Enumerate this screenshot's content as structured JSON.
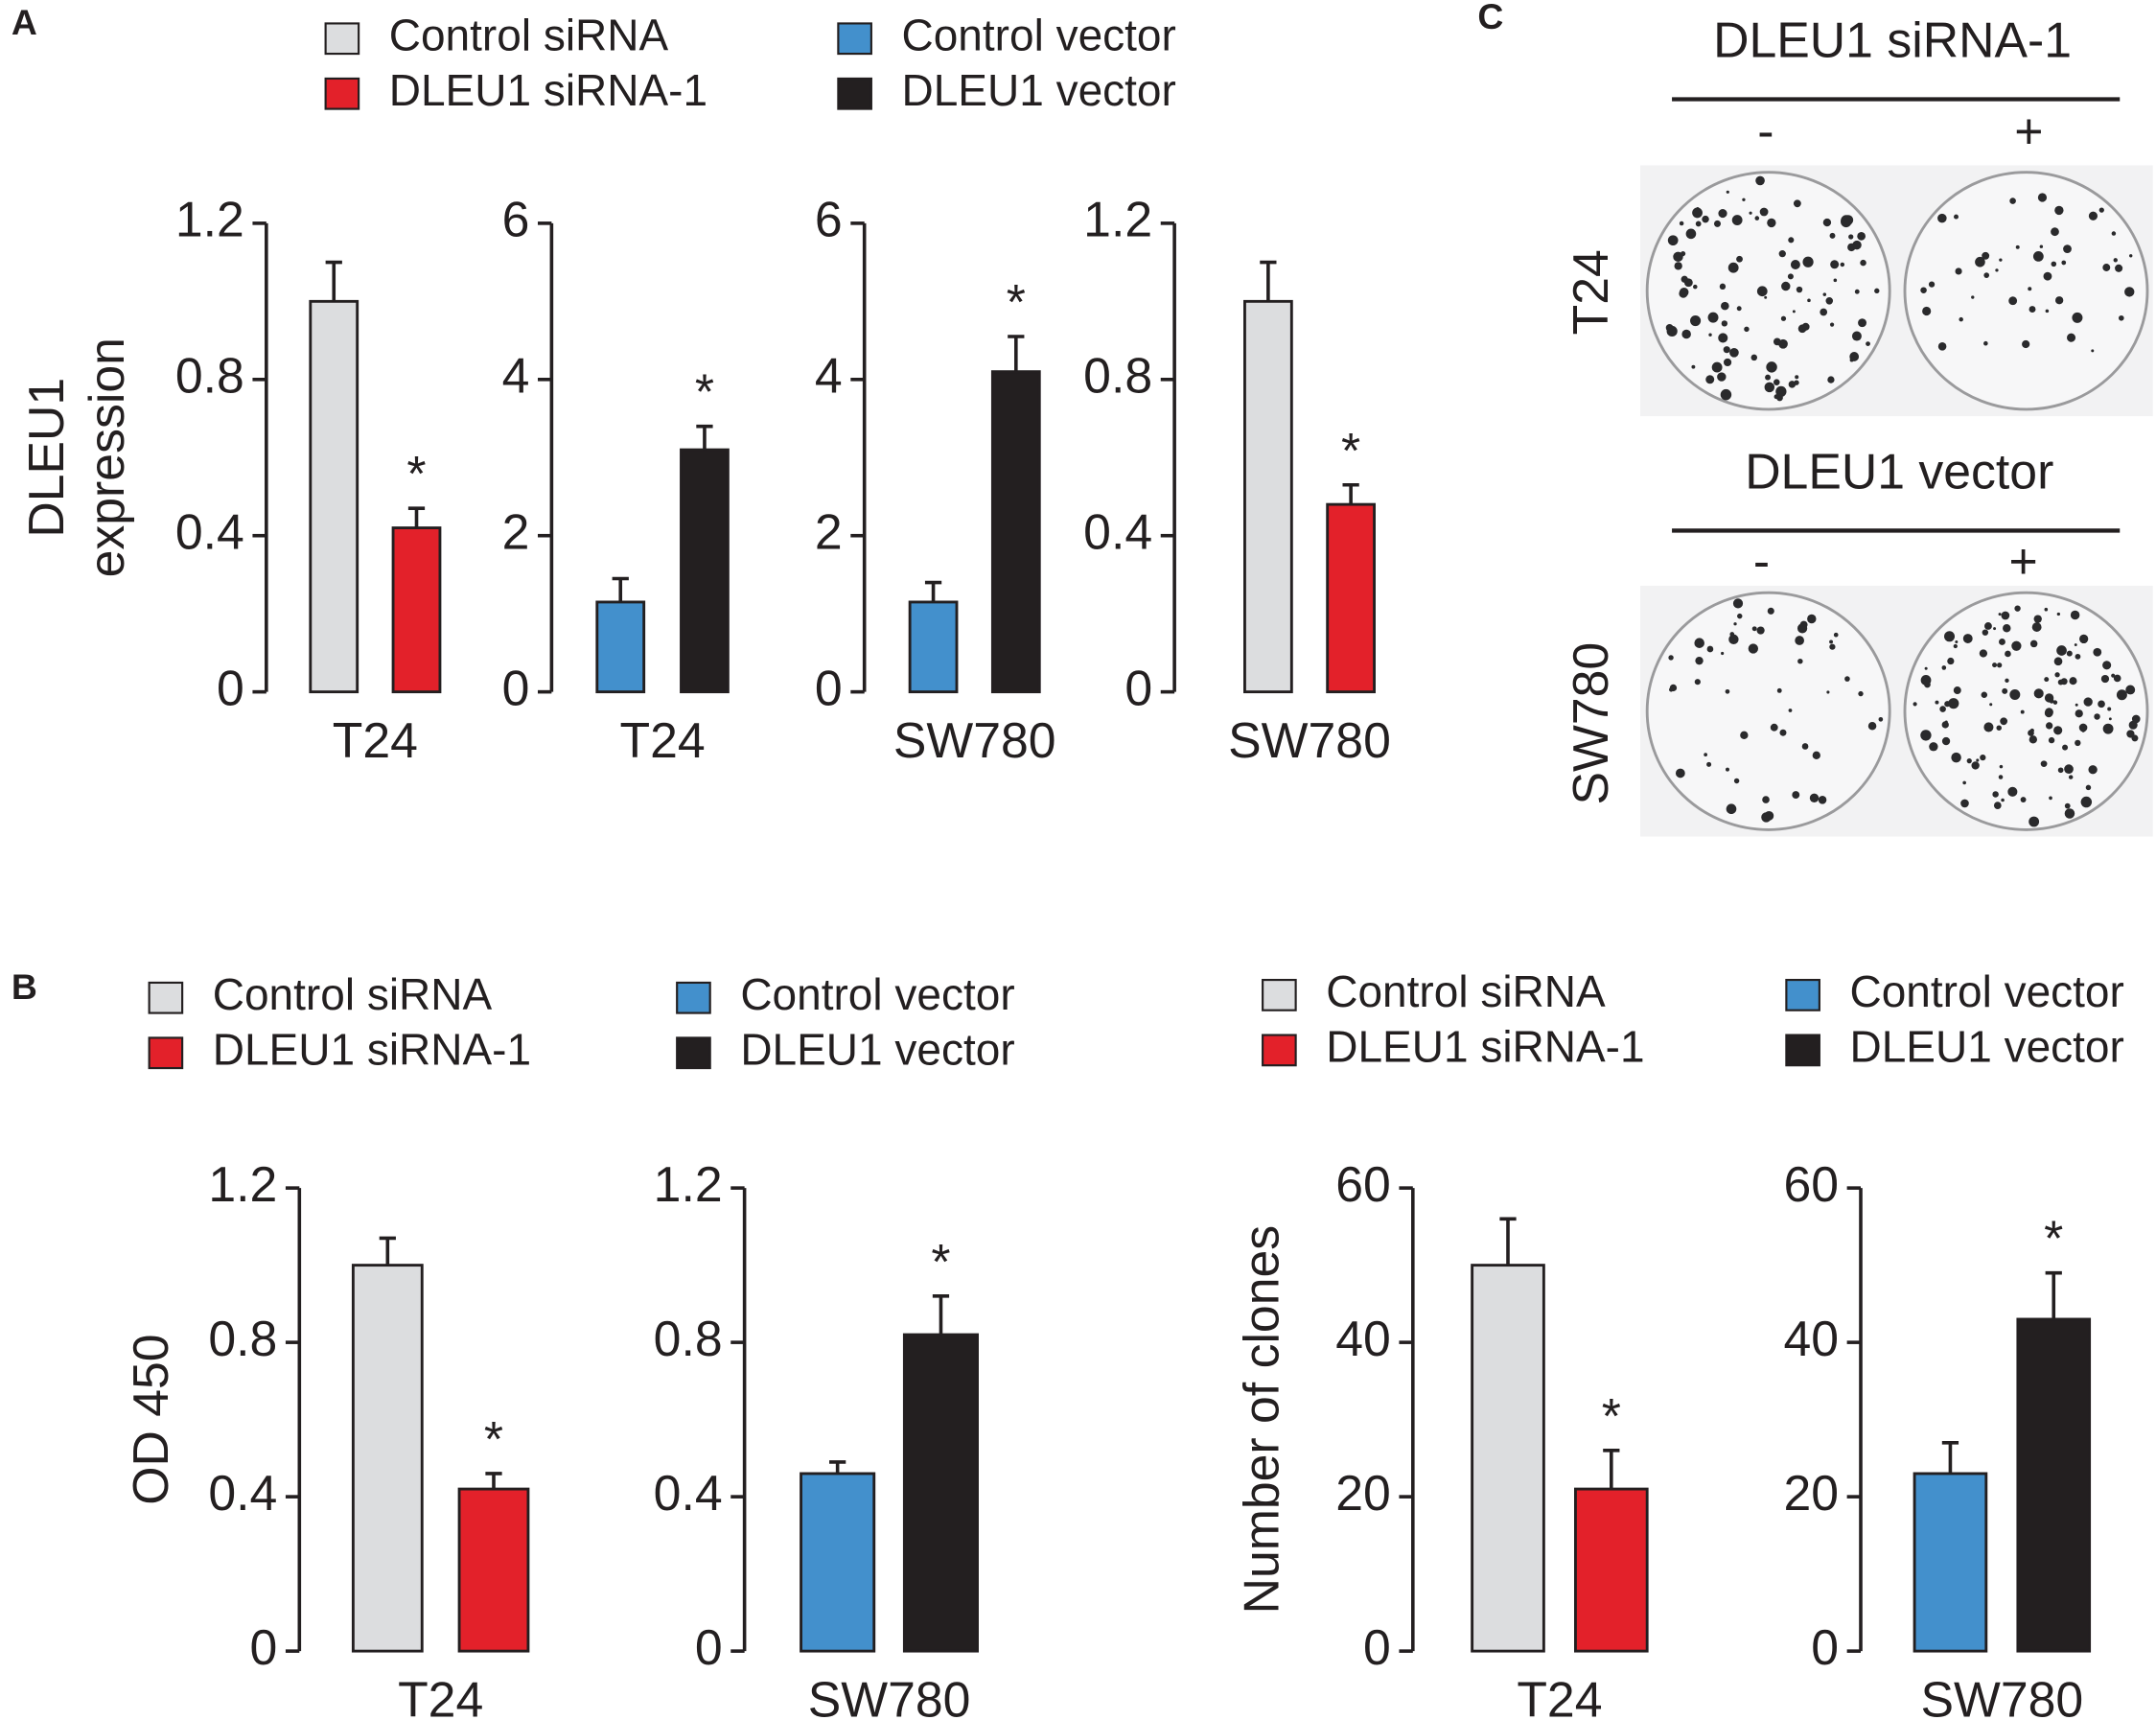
{
  "panels": [
    "A",
    "B",
    "C"
  ],
  "legends": [
    {
      "name": "Control siRNA",
      "color": "#dcdddf"
    },
    {
      "name": "DLEU1 siRNA-1",
      "color": "#e3212a"
    },
    {
      "name": "Control vector",
      "color": "#4390cc"
    },
    {
      "name": "DLEU1 vector",
      "color": "#231f20"
    }
  ],
  "panel_c": {
    "group1": {
      "title": "DLEU1 siRNA-1",
      "minus": "-",
      "plus": "+",
      "row": "T24"
    },
    "group2": {
      "title": "DLEU1 vector",
      "minus": "-",
      "plus": "+",
      "row": "SW780"
    }
  },
  "chart_data": [
    {
      "type": "bar",
      "ylabel": [
        "DLEU1",
        "expression"
      ],
      "categories": [
        "T24"
      ],
      "ylim": [
        0,
        1.2
      ],
      "yticks": [
        0,
        0.4,
        0.8,
        1.2
      ],
      "annotation": "*",
      "series": [
        {
          "color": "#dcdddf",
          "values": [
            1.0
          ],
          "errors": [
            0.1
          ]
        },
        {
          "color": "#e3212a",
          "values": [
            0.42
          ],
          "errors": [
            0.05
          ]
        }
      ]
    },
    {
      "type": "bar",
      "categories": [
        "T24"
      ],
      "ylim": [
        0,
        6
      ],
      "yticks": [
        0,
        2,
        4,
        6
      ],
      "annotation": "*",
      "series": [
        {
          "color": "#4390cc",
          "values": [
            1.15
          ],
          "errors": [
            0.3
          ]
        },
        {
          "color": "#231f20",
          "values": [
            3.1
          ],
          "errors": [
            0.3
          ]
        }
      ]
    },
    {
      "type": "bar",
      "categories": [
        "SW780"
      ],
      "ylim": [
        0,
        6
      ],
      "yticks": [
        0,
        2,
        4,
        6
      ],
      "annotation": "*",
      "series": [
        {
          "color": "#4390cc",
          "values": [
            1.15
          ],
          "errors": [
            0.25
          ]
        },
        {
          "color": "#231f20",
          "values": [
            4.1
          ],
          "errors": [
            0.45
          ]
        }
      ]
    },
    {
      "type": "bar",
      "categories": [
        "SW780"
      ],
      "ylim": [
        0,
        1.2
      ],
      "yticks": [
        0,
        0.4,
        0.8,
        1.2
      ],
      "annotation": "*",
      "series": [
        {
          "color": "#dcdddf",
          "values": [
            1.0
          ],
          "errors": [
            0.1
          ]
        },
        {
          "color": "#e3212a",
          "values": [
            0.48
          ],
          "errors": [
            0.05
          ]
        }
      ]
    },
    {
      "type": "bar",
      "ylabel": [
        "OD 450"
      ],
      "categories": [
        "T24"
      ],
      "ylim": [
        0,
        1.2
      ],
      "yticks": [
        0,
        0.4,
        0.8,
        1.2
      ],
      "annotation": "*",
      "series": [
        {
          "color": "#dcdddf",
          "values": [
            1.0
          ],
          "errors": [
            0.07
          ]
        },
        {
          "color": "#e3212a",
          "values": [
            0.42
          ],
          "errors": [
            0.04
          ]
        }
      ]
    },
    {
      "type": "bar",
      "categories": [
        "SW780"
      ],
      "ylim": [
        0,
        1.2
      ],
      "yticks": [
        0,
        0.4,
        0.8,
        1.2
      ],
      "annotation": "*",
      "series": [
        {
          "color": "#4390cc",
          "values": [
            0.46
          ],
          "errors": [
            0.03
          ]
        },
        {
          "color": "#231f20",
          "values": [
            0.82
          ],
          "errors": [
            0.1
          ]
        }
      ]
    },
    {
      "type": "bar",
      "ylabel": [
        "Number of clones"
      ],
      "categories": [
        "T24"
      ],
      "ylim": [
        0,
        60
      ],
      "yticks": [
        0,
        20,
        40,
        60
      ],
      "annotation": "*",
      "series": [
        {
          "color": "#dcdddf",
          "values": [
            50
          ],
          "errors": [
            6
          ]
        },
        {
          "color": "#e3212a",
          "values": [
            21
          ],
          "errors": [
            5
          ]
        }
      ]
    },
    {
      "type": "bar",
      "categories": [
        "SW780"
      ],
      "ylim": [
        0,
        60
      ],
      "yticks": [
        0,
        20,
        40,
        60
      ],
      "annotation": "*",
      "series": [
        {
          "color": "#4390cc",
          "values": [
            23
          ],
          "errors": [
            4
          ]
        },
        {
          "color": "#231f20",
          "values": [
            43
          ],
          "errors": [
            6
          ]
        }
      ]
    }
  ]
}
